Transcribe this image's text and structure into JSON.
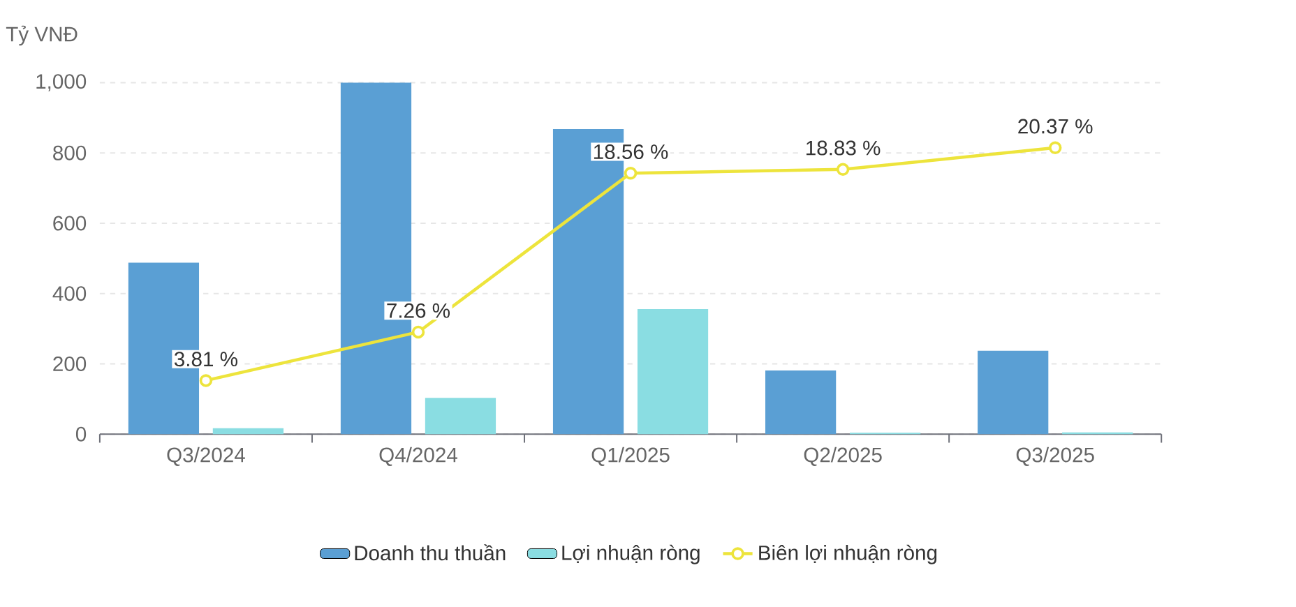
{
  "chart_data": {
    "type": "bar",
    "ylabel": "Tỷ VNĐ",
    "categories": [
      "Q3/2024",
      "Q4/2024",
      "Q1/2025",
      "Q2/2025",
      "Q3/2025"
    ],
    "series": [
      {
        "name": "Doanh thu thuần",
        "color": "#5a9fd4",
        "values": [
          488,
          1000,
          868,
          181,
          237
        ]
      },
      {
        "name": "Lợi nhuận ròng",
        "color": "#8adde2",
        "values": [
          17,
          103,
          356,
          4,
          5
        ]
      },
      {
        "name": "Biên lợi nhuận ròng",
        "type": "line",
        "axis": "y2",
        "color": "#ede43c",
        "marker": "circle",
        "values": [
          3.81,
          7.26,
          18.56,
          18.83,
          20.37
        ],
        "value_labels": [
          "3.81 %",
          "7.26 %",
          "18.56 %",
          "18.83 %",
          "20.37 %"
        ]
      }
    ],
    "ylim": [
      0,
      1000
    ],
    "yticks": [
      0,
      200,
      400,
      600,
      800,
      {
        "value": 1000,
        "label": "1,000"
      }
    ],
    "y2lim": [
      0,
      25
    ],
    "grid": "y",
    "legend": "bottom"
  }
}
